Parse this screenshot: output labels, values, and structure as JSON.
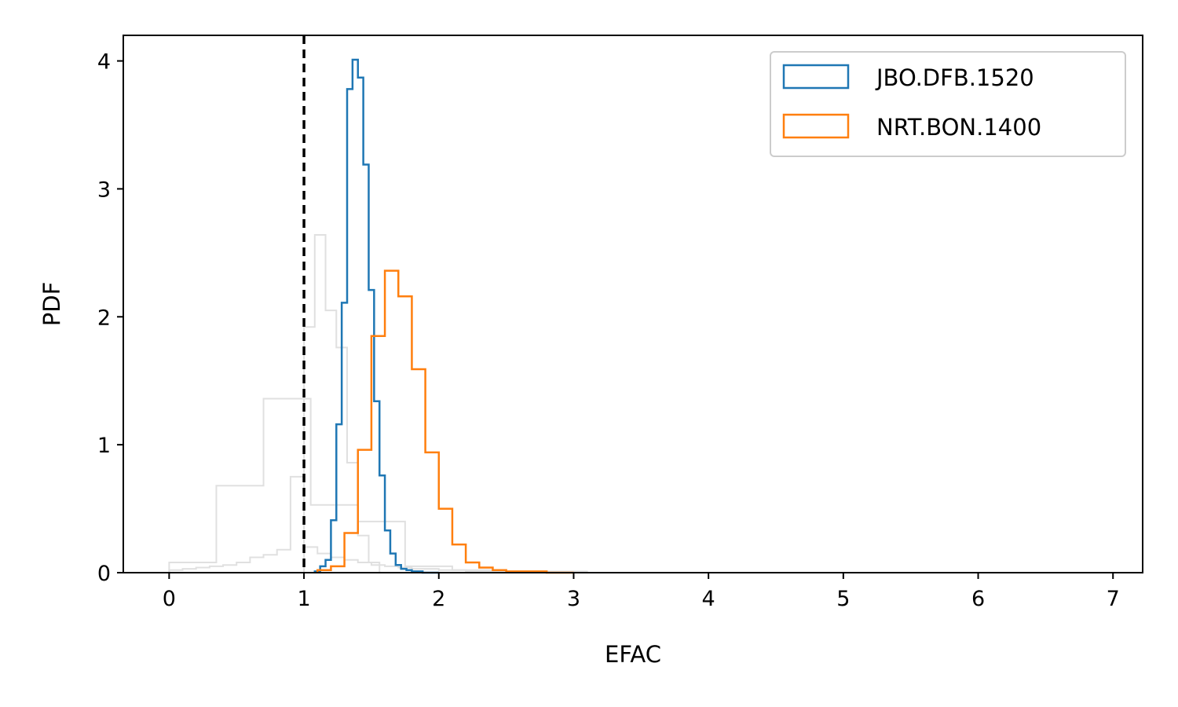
{
  "chart_data": {
    "type": "histogram",
    "title": "",
    "xlabel": "EFAC",
    "ylabel": "PDF",
    "xlim": [
      -0.34,
      7.22
    ],
    "ylim": [
      0,
      4.2
    ],
    "xticks": [
      0,
      1,
      2,
      3,
      4,
      5,
      6,
      7
    ],
    "yticks": [
      0,
      1,
      2,
      3,
      4
    ],
    "grid": false,
    "legend_position": "top-right",
    "reference_line": {
      "x": 1.0,
      "style": "dashed",
      "color": "#000000"
    },
    "colors": {
      "series_0": "#1f77b4",
      "series_1": "#ff7f0e",
      "background_series": "#e0e0e0"
    },
    "series": [
      {
        "name": "JBO.DFB.1520",
        "color": "#1f77b4",
        "edges": [
          1.08,
          1.12,
          1.16,
          1.2,
          1.24,
          1.28,
          1.32,
          1.36,
          1.4,
          1.44,
          1.48,
          1.52,
          1.56,
          1.6,
          1.64,
          1.68,
          1.72,
          1.76,
          1.8,
          1.84,
          1.88,
          1.92,
          1.96,
          2.0
        ],
        "values": [
          0.01,
          0.05,
          0.1,
          0.41,
          1.16,
          2.11,
          3.78,
          4.01,
          3.87,
          3.19,
          2.21,
          1.34,
          0.76,
          0.33,
          0.15,
          0.06,
          0.03,
          0.02,
          0.01,
          0.01,
          0.0,
          0.0,
          0.0
        ]
      },
      {
        "name": "NRT.BON.1400",
        "color": "#ff7f0e",
        "edges": [
          1.1,
          1.2,
          1.3,
          1.4,
          1.5,
          1.6,
          1.7,
          1.8,
          1.9,
          2.0,
          2.1,
          2.2,
          2.3,
          2.4,
          2.5,
          2.6,
          2.7,
          2.8,
          2.9,
          3.0
        ],
        "values": [
          0.02,
          0.05,
          0.31,
          0.96,
          1.85,
          2.36,
          2.16,
          1.59,
          0.94,
          0.5,
          0.22,
          0.08,
          0.04,
          0.02,
          0.01,
          0.01,
          0.01,
          0.0,
          0.0
        ]
      }
    ],
    "background_series": [
      {
        "edges": [
          0.0,
          0.35,
          0.7,
          1.05,
          1.4,
          1.75,
          2.1,
          2.45
        ],
        "values": [
          0.08,
          0.68,
          1.36,
          0.53,
          0.4,
          0.05,
          0.02
        ]
      },
      {
        "edges": [
          1.0,
          1.08,
          1.16,
          1.24,
          1.32,
          1.4,
          1.48,
          1.56
        ],
        "values": [
          1.92,
          2.64,
          2.05,
          1.76,
          0.86,
          0.29,
          0.08
        ]
      },
      {
        "edges": [
          0.0,
          0.1,
          0.2,
          0.3,
          0.4,
          0.5,
          0.6,
          0.7,
          0.8,
          0.9,
          1.0,
          1.1,
          1.2,
          1.3,
          1.4,
          1.5,
          1.6,
          1.7,
          1.8,
          1.9,
          2.0,
          2.2,
          2.5,
          3.1
        ],
        "values": [
          0.02,
          0.03,
          0.04,
          0.05,
          0.06,
          0.08,
          0.12,
          0.14,
          0.18,
          0.75,
          0.2,
          0.15,
          0.12,
          0.1,
          0.08,
          0.06,
          0.05,
          0.04,
          0.03,
          0.03,
          0.02,
          0.01,
          0.01
        ]
      }
    ]
  }
}
